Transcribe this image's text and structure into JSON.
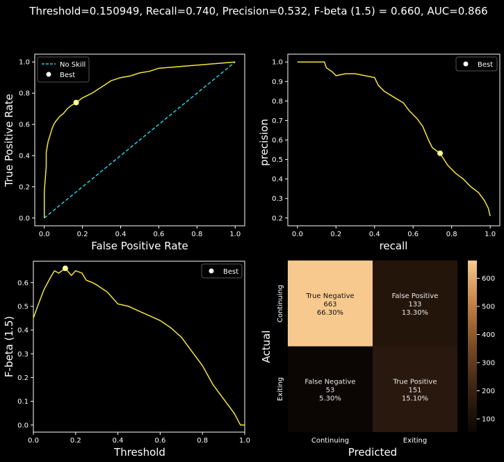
{
  "figure_title": "Threshold=0.150949, Recall=0.740, Precision=0.532, F-beta (1.5) = 0.660, AUC=0.866",
  "colors": {
    "background": "#000000",
    "curve": "#f5e63d",
    "no_skill": "#22d3e6",
    "best_marker": "#ffff99"
  },
  "chart_data": [
    {
      "type": "line",
      "name": "roc",
      "xlabel": "False Positive Rate",
      "ylabel": "True Positive Rate",
      "xlim": [
        -0.05,
        1.05
      ],
      "ylim": [
        -0.05,
        1.05
      ],
      "xticks": [
        "0.0",
        "0.2",
        "0.4",
        "0.6",
        "0.8",
        "1.0"
      ],
      "yticks": [
        "0.0",
        "0.2",
        "0.4",
        "0.6",
        "0.8",
        "1.0"
      ],
      "legend": {
        "position": "top-left",
        "entries": [
          "No Skill",
          "Best"
        ]
      },
      "series": [
        {
          "name": "No Skill",
          "style": "dashed",
          "x": [
            0,
            1
          ],
          "y": [
            0,
            1
          ]
        },
        {
          "name": "ROC",
          "x": [
            0,
            0,
            0.01,
            0.01,
            0.02,
            0.03,
            0.04,
            0.05,
            0.06,
            0.08,
            0.1,
            0.12,
            0.14,
            0.167,
            0.2,
            0.25,
            0.3,
            0.35,
            0.4,
            0.45,
            0.5,
            0.55,
            0.6,
            0.7,
            0.8,
            0.9,
            1.0
          ],
          "y": [
            0,
            0.17,
            0.33,
            0.42,
            0.49,
            0.53,
            0.57,
            0.6,
            0.62,
            0.65,
            0.67,
            0.7,
            0.72,
            0.74,
            0.77,
            0.8,
            0.84,
            0.88,
            0.9,
            0.91,
            0.93,
            0.94,
            0.96,
            0.97,
            0.98,
            0.99,
            1.0
          ]
        }
      ],
      "best": {
        "label": "Best",
        "x": 0.167,
        "y": 0.74
      }
    },
    {
      "type": "line",
      "name": "precision-recall",
      "xlabel": "recall",
      "ylabel": "precision",
      "xlim": [
        -0.05,
        1.05
      ],
      "ylim": [
        0.16,
        1.04
      ],
      "xticks": [
        "0.0",
        "0.2",
        "0.4",
        "0.6",
        "0.8",
        "1.0"
      ],
      "yticks": [
        "0.2",
        "0.3",
        "0.4",
        "0.5",
        "0.6",
        "0.7",
        "0.8",
        "0.9",
        "1.0"
      ],
      "legend": {
        "position": "top-right",
        "entries": [
          "Best"
        ]
      },
      "series": [
        {
          "name": "PR",
          "x": [
            0,
            0.14,
            0.15,
            0.18,
            0.2,
            0.25,
            0.3,
            0.35,
            0.4,
            0.42,
            0.45,
            0.5,
            0.55,
            0.58,
            0.6,
            0.62,
            0.65,
            0.68,
            0.7,
            0.74,
            0.78,
            0.82,
            0.86,
            0.9,
            0.94,
            0.97,
            0.99,
            1.0
          ],
          "y": [
            1.0,
            1.0,
            0.97,
            0.95,
            0.93,
            0.94,
            0.94,
            0.93,
            0.92,
            0.88,
            0.85,
            0.82,
            0.79,
            0.75,
            0.73,
            0.71,
            0.67,
            0.6,
            0.56,
            0.532,
            0.47,
            0.43,
            0.4,
            0.36,
            0.33,
            0.29,
            0.25,
            0.21
          ]
        }
      ],
      "best": {
        "label": "Best",
        "x": 0.74,
        "y": 0.532
      }
    },
    {
      "type": "line",
      "name": "fbeta-threshold",
      "xlabel": "Threshold",
      "ylabel": "F-beta (1.5)",
      "xlim": [
        0,
        1
      ],
      "ylim": [
        -0.03,
        0.69
      ],
      "xticks": [
        "0.0",
        "0.2",
        "0.4",
        "0.6",
        "0.8",
        "1.0"
      ],
      "yticks": [
        "0.0",
        "0.1",
        "0.2",
        "0.3",
        "0.4",
        "0.5",
        "0.6"
      ],
      "legend": {
        "position": "top-right",
        "entries": [
          "Best"
        ]
      },
      "series": [
        {
          "name": "F-beta",
          "x": [
            0,
            0.02,
            0.05,
            0.08,
            0.1,
            0.12,
            0.151,
            0.18,
            0.2,
            0.23,
            0.25,
            0.28,
            0.3,
            0.35,
            0.4,
            0.45,
            0.5,
            0.55,
            0.6,
            0.65,
            0.7,
            0.75,
            0.8,
            0.85,
            0.9,
            0.95,
            0.98,
            1.0
          ],
          "y": [
            0.45,
            0.5,
            0.57,
            0.62,
            0.65,
            0.64,
            0.66,
            0.63,
            0.65,
            0.64,
            0.61,
            0.6,
            0.59,
            0.56,
            0.51,
            0.5,
            0.48,
            0.46,
            0.44,
            0.41,
            0.37,
            0.31,
            0.25,
            0.17,
            0.11,
            0.05,
            0.0,
            0.0
          ]
        }
      ],
      "best": {
        "label": "Best",
        "x": 0.151,
        "y": 0.66
      }
    },
    {
      "type": "heatmap",
      "name": "confusion-matrix",
      "xlabel": "Predicted",
      "ylabel": "Actual",
      "x_categories": [
        "Continuing",
        "Exiting"
      ],
      "y_categories": [
        "Continuing",
        "Exiting"
      ],
      "cells": [
        [
          {
            "label": "True Negative",
            "count": "663",
            "percent": "66.30%",
            "value": 663
          },
          {
            "label": "False Positive",
            "count": "133",
            "percent": "13.30%",
            "value": 133
          }
        ],
        [
          {
            "label": "False Negative",
            "count": "53",
            "percent": "5.30%",
            "value": 53
          },
          {
            "label": "True Positive",
            "count": "151",
            "percent": "15.10%",
            "value": 151
          }
        ]
      ],
      "colorbar": {
        "min": 53,
        "max": 663,
        "ticks": [
          "100",
          "200",
          "300",
          "400",
          "500",
          "600"
        ],
        "tick_values": [
          100,
          200,
          300,
          400,
          500,
          600
        ]
      }
    }
  ]
}
